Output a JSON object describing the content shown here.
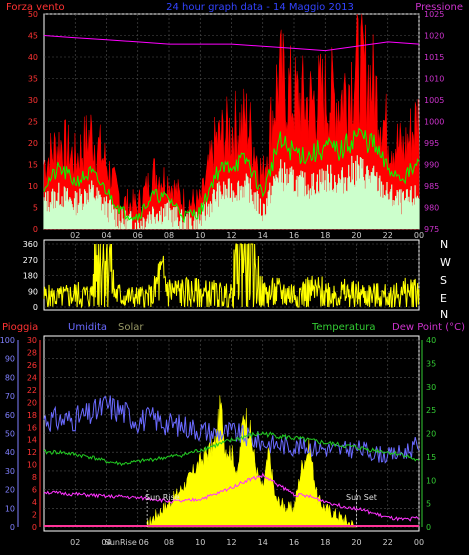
{
  "header": {
    "wind_label": "Forza vento",
    "title": "24 hour graph data - 14 Maggio 2013",
    "pressure_label": "Pressione"
  },
  "middle": {
    "compass": [
      "N",
      "W",
      "S",
      "E",
      "N"
    ]
  },
  "bottom_header": {
    "rain_label": "Pioggia",
    "humidity_label": "Umidita",
    "solar_label": "Solar",
    "temperature_label": "Temperatura",
    "dewpoint_label": "Dew Point (°C)"
  },
  "annotations": {
    "sun_rise": "Sun Rise",
    "sun_set": "Sun Set",
    "sunrise_tick": "SunRise"
  },
  "colors": {
    "background": "#000000",
    "grid": "#505050",
    "wind_gust": "#ff0000",
    "wind_avg": "#00ff00",
    "wind_speed": "#ccffcc",
    "pressure": "#ff00ff",
    "direction": "#ffff00",
    "humidity": "#6a6aff",
    "temperature": "#22cc22",
    "dewpoint": "#ff33ff",
    "solar": "#ffff00",
    "rain": "#ff3399",
    "left_axis_text": "#ff3333",
    "right_axis_text": "#cc33cc",
    "hum_axis_text": "#8080ff",
    "dew_axis_text": "#33cc33"
  },
  "chart_data": [
    {
      "type": "line",
      "title": "24 hour graph data - 14 Maggio 2013",
      "x_ticks": [
        "02",
        "04",
        "06",
        "08",
        "10",
        "12",
        "14",
        "16",
        "18",
        "20",
        "22",
        "00"
      ],
      "y_left": {
        "label": "Forza vento",
        "range": [
          0,
          50
        ],
        "ticks": [
          0,
          5,
          10,
          15,
          20,
          25,
          30,
          35,
          40,
          45,
          50
        ]
      },
      "y_right": {
        "label": "Pressione",
        "range": [
          975,
          1025
        ],
        "ticks": [
          975,
          980,
          985,
          990,
          995,
          1000,
          1005,
          1010,
          1015,
          1020,
          1025
        ]
      },
      "grid": true,
      "series": [
        {
          "name": "gust",
          "hours": [
            0,
            1,
            2,
            3,
            4,
            5,
            6,
            7,
            8,
            9,
            10,
            11,
            12,
            13,
            14,
            15,
            16,
            17,
            18,
            19,
            20,
            21,
            22,
            23,
            24
          ],
          "values": [
            15,
            20,
            16,
            22,
            15,
            6,
            5,
            13,
            11,
            6,
            6,
            20,
            23,
            25,
            12,
            35,
            30,
            29,
            31,
            30,
            38,
            34,
            22,
            18,
            26
          ]
        },
        {
          "name": "average",
          "hours": [
            0,
            1,
            2,
            3,
            4,
            5,
            6,
            7,
            8,
            9,
            10,
            11,
            12,
            13,
            14,
            15,
            16,
            17,
            18,
            19,
            20,
            21,
            22,
            23,
            24
          ],
          "values": [
            10,
            14,
            11,
            13,
            9,
            4,
            3,
            8,
            7,
            3,
            4,
            13,
            15,
            16,
            8,
            20,
            18,
            17,
            19,
            18,
            22,
            20,
            14,
            12,
            15
          ]
        },
        {
          "name": "speed",
          "hours": [
            0,
            1,
            2,
            3,
            4,
            5,
            6,
            7,
            8,
            9,
            10,
            11,
            12,
            13,
            14,
            15,
            16,
            17,
            18,
            19,
            20,
            21,
            22,
            23,
            24
          ],
          "values": [
            6,
            8,
            6,
            9,
            5,
            2,
            1,
            4,
            4,
            1,
            2,
            8,
            9,
            10,
            4,
            13,
            11,
            10,
            12,
            11,
            14,
            12,
            8,
            6,
            8
          ]
        },
        {
          "name": "pressure",
          "hours": [
            0,
            2,
            4,
            6,
            8,
            10,
            12,
            14,
            16,
            18,
            20,
            22,
            24
          ],
          "values": [
            1020,
            1019.5,
            1019,
            1018.5,
            1018,
            1018,
            1018,
            1017.5,
            1017,
            1016.5,
            1017.5,
            1018.5,
            1018
          ]
        }
      ]
    },
    {
      "type": "scatter",
      "x_ticks": [
        "02",
        "04",
        "06",
        "08",
        "10",
        "12",
        "14",
        "16",
        "18",
        "20",
        "22",
        "00"
      ],
      "y": {
        "range": [
          0,
          360
        ],
        "ticks": [
          0,
          90,
          180,
          270,
          360
        ]
      },
      "grid": true,
      "series": [
        {
          "name": "direction",
          "hours": [
            0,
            1,
            2,
            3,
            3.5,
            3.8,
            4.2,
            4.5,
            5,
            6,
            7,
            7.3,
            7.7,
            8,
            9,
            10,
            11,
            12,
            12.5,
            13,
            14,
            15,
            16,
            17,
            18,
            19,
            20,
            21,
            22,
            23,
            24
          ],
          "values": [
            60,
            55,
            70,
            65,
            320,
            340,
            310,
            80,
            60,
            55,
            60,
            150,
            150,
            90,
            80,
            75,
            70,
            60,
            350,
            340,
            70,
            80,
            75,
            85,
            80,
            75,
            70,
            65,
            60,
            75,
            90
          ]
        }
      ]
    },
    {
      "type": "line",
      "x_ticks": [
        "02",
        "04",
        "SunRise",
        "06",
        "08",
        "10",
        "12",
        "14",
        "16",
        "18",
        "20",
        "22",
        "00"
      ],
      "y_rain": {
        "label": "Pioggia",
        "range": [
          0,
          30
        ],
        "ticks": [
          0,
          2,
          4,
          6,
          8,
          10,
          12,
          14,
          16,
          18,
          20,
          22,
          24,
          26,
          28,
          30
        ]
      },
      "y_humidity": {
        "label": "Umidita",
        "range": [
          0,
          100
        ],
        "ticks": [
          0,
          10,
          20,
          30,
          40,
          50,
          60,
          70,
          80,
          90,
          100
        ]
      },
      "y_temperature": {
        "label": "Temperatura",
        "range": [
          0,
          40
        ],
        "ticks": [
          0,
          5,
          10,
          15,
          20,
          25,
          30,
          35,
          40
        ]
      },
      "grid": true,
      "series": [
        {
          "name": "humidity",
          "hours": [
            0,
            1,
            2,
            3,
            4,
            5,
            6,
            7,
            8,
            9,
            10,
            11,
            12,
            13,
            14,
            15,
            16,
            17,
            18,
            19,
            20,
            21,
            22,
            23,
            24
          ],
          "values": [
            58,
            57,
            58,
            60,
            65,
            62,
            57,
            58,
            55,
            54,
            52,
            50,
            51,
            48,
            45,
            44,
            43,
            43,
            42,
            41,
            42,
            40,
            38,
            40,
            44
          ]
        },
        {
          "name": "temperature",
          "hours": [
            0,
            1,
            2,
            3,
            4,
            5,
            6,
            7,
            8,
            9,
            10,
            11,
            12,
            13,
            14,
            15,
            16,
            17,
            18,
            19,
            20,
            21,
            22,
            23,
            24
          ],
          "values": [
            16,
            16,
            15.5,
            15,
            14,
            13.5,
            14,
            14.5,
            15,
            15.5,
            16.5,
            17.5,
            18.5,
            19.5,
            20,
            19.5,
            19,
            18.5,
            18,
            17.5,
            17,
            16.5,
            16,
            15.5,
            14
          ]
        },
        {
          "name": "dewpoint",
          "hours": [
            0,
            1,
            2,
            3,
            4,
            5,
            6,
            7,
            8,
            9,
            10,
            11,
            12,
            13,
            14,
            15,
            16,
            17,
            18,
            19,
            20,
            21,
            22,
            23,
            24
          ],
          "values": [
            7.5,
            7.2,
            7,
            6.8,
            6.5,
            6.5,
            6.2,
            6,
            5.5,
            5.5,
            6,
            7,
            8.5,
            10,
            11,
            9,
            7,
            6.5,
            5.5,
            4.5,
            4,
            3,
            2,
            1.5,
            2
          ]
        },
        {
          "name": "solar",
          "hours": [
            6.6,
            7,
            8,
            9,
            10,
            11,
            11.3,
            11.6,
            12,
            12.4,
            12.8,
            13.2,
            13.6,
            14,
            14.4,
            14.8,
            15.2,
            15.6,
            16,
            16.5,
            17,
            17.5,
            18,
            18.5,
            19,
            19.5,
            20
          ],
          "values": [
            0,
            2,
            5,
            9,
            14,
            18,
            26,
            17,
            16,
            11,
            25,
            20,
            12,
            8,
            16,
            6,
            5,
            4,
            4,
            13,
            17,
            6,
            4,
            3,
            2,
            1,
            0
          ]
        },
        {
          "name": "rain",
          "hours": [
            0,
            24
          ],
          "values": [
            0,
            0
          ]
        }
      ]
    }
  ]
}
